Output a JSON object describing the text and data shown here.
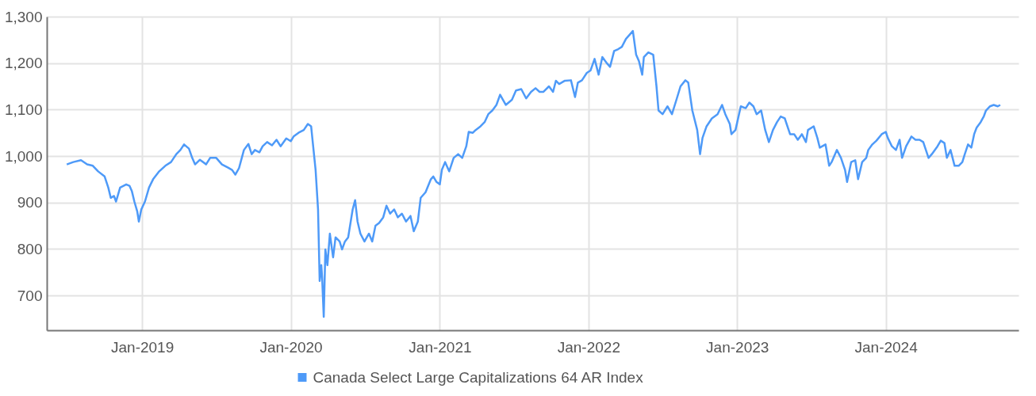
{
  "chart_data": {
    "type": "line",
    "x": [
      "2018-06-30",
      "2018-07-16",
      "2018-08-04",
      "2018-08-19",
      "2018-09-02",
      "2018-09-15",
      "2018-10-01",
      "2018-10-10",
      "2018-10-16",
      "2018-10-24",
      "2018-10-29",
      "2018-11-08",
      "2018-11-23",
      "2018-12-01",
      "2018-12-07",
      "2018-12-13",
      "2018-12-20",
      "2018-12-24",
      "2018-12-30",
      "2019-01-08",
      "2019-01-18",
      "2019-01-28",
      "2019-02-12",
      "2019-02-27",
      "2019-03-13",
      "2019-03-26",
      "2019-04-05",
      "2019-04-14",
      "2019-04-26",
      "2019-05-04",
      "2019-05-11",
      "2019-05-23",
      "2019-06-07",
      "2019-06-17",
      "2019-07-02",
      "2019-07-16",
      "2019-07-31",
      "2019-08-10",
      "2019-08-18",
      "2019-08-27",
      "2019-09-08",
      "2019-09-19",
      "2019-09-27",
      "2019-10-05",
      "2019-10-16",
      "2019-10-24",
      "2019-11-04",
      "2019-11-16",
      "2019-11-27",
      "2019-12-07",
      "2019-12-21",
      "2020-01-01",
      "2020-01-08",
      "2020-01-20",
      "2020-02-02",
      "2020-02-12",
      "2020-02-20",
      "2020-02-25",
      "2020-03-02",
      "2020-03-08",
      "2020-03-12",
      "2020-03-16",
      "2020-03-18",
      "2020-03-22",
      "2020-03-26",
      "2020-03-31",
      "2020-04-06",
      "2020-04-14",
      "2020-04-20",
      "2020-04-30",
      "2020-05-06",
      "2020-05-13",
      "2020-05-21",
      "2020-06-01",
      "2020-06-07",
      "2020-06-13",
      "2020-06-20",
      "2020-06-30",
      "2020-07-11",
      "2020-07-19",
      "2020-07-27",
      "2020-08-05",
      "2020-08-15",
      "2020-08-23",
      "2020-09-01",
      "2020-09-11",
      "2020-09-20",
      "2020-09-30",
      "2020-10-10",
      "2020-10-21",
      "2020-10-29",
      "2020-11-08",
      "2020-11-15",
      "2020-11-27",
      "2020-12-10",
      "2020-12-16",
      "2020-12-24",
      "2021-01-01",
      "2021-01-06",
      "2021-01-14",
      "2021-01-24",
      "2021-02-04",
      "2021-02-15",
      "2021-02-25",
      "2021-03-07",
      "2021-03-13",
      "2021-03-23",
      "2021-03-30",
      "2021-04-11",
      "2021-04-21",
      "2021-04-30",
      "2021-05-10",
      "2021-05-20",
      "2021-05-29",
      "2021-06-12",
      "2021-06-27",
      "2021-07-07",
      "2021-07-20",
      "2021-08-01",
      "2021-08-13",
      "2021-08-24",
      "2021-09-03",
      "2021-09-12",
      "2021-09-26",
      "2021-10-06",
      "2021-10-13",
      "2021-10-21",
      "2021-11-04",
      "2021-11-19",
      "2021-11-29",
      "2021-12-06",
      "2021-12-16",
      "2021-12-28",
      "2022-01-06",
      "2022-01-16",
      "2022-01-26",
      "2022-02-04",
      "2022-02-14",
      "2022-02-23",
      "2022-03-05",
      "2022-03-15",
      "2022-03-24",
      "2022-04-03",
      "2022-04-12",
      "2022-04-20",
      "2022-04-28",
      "2022-05-05",
      "2022-05-13",
      "2022-05-17",
      "2022-05-28",
      "2022-06-09",
      "2022-06-17",
      "2022-06-22",
      "2022-07-02",
      "2022-07-14",
      "2022-07-25",
      "2022-08-06",
      "2022-08-15",
      "2022-08-27",
      "2022-09-03",
      "2022-09-13",
      "2022-09-25",
      "2022-10-02",
      "2022-10-08",
      "2022-10-18",
      "2022-10-31",
      "2022-11-14",
      "2022-11-25",
      "2022-12-03",
      "2022-12-14",
      "2022-12-18",
      "2022-12-28",
      "2023-01-10",
      "2023-01-22",
      "2023-01-31",
      "2023-02-10",
      "2023-02-18",
      "2023-03-01",
      "2023-03-11",
      "2023-03-20",
      "2023-03-30",
      "2023-04-09",
      "2023-04-18",
      "2023-04-28",
      "2023-05-11",
      "2023-05-21",
      "2023-05-30",
      "2023-06-09",
      "2023-06-19",
      "2023-06-24",
      "2023-07-08",
      "2023-07-17",
      "2023-07-23",
      "2023-08-06",
      "2023-08-15",
      "2023-08-21",
      "2023-09-03",
      "2023-09-13",
      "2023-09-23",
      "2023-09-28",
      "2023-10-08",
      "2023-10-18",
      "2023-10-25",
      "2023-11-04",
      "2023-11-14",
      "2023-11-19",
      "2023-11-29",
      "2023-12-09",
      "2023-12-22",
      "2024-01-01",
      "2024-01-06",
      "2024-01-16",
      "2024-01-26",
      "2024-02-04",
      "2024-02-10",
      "2024-02-20",
      "2024-03-04",
      "2024-03-14",
      "2024-03-24",
      "2024-04-02",
      "2024-04-15",
      "2024-04-23",
      "2024-05-07",
      "2024-05-15",
      "2024-05-24",
      "2024-05-30",
      "2024-06-08",
      "2024-06-18",
      "2024-06-28",
      "2024-07-07",
      "2024-07-13",
      "2024-07-21",
      "2024-07-29",
      "2024-08-05",
      "2024-08-11",
      "2024-08-21",
      "2024-08-29",
      "2024-09-03",
      "2024-09-13",
      "2024-09-22",
      "2024-10-02",
      "2024-10-08"
    ],
    "series": [
      {
        "name": "Canada Select Large Capitalizations 64 AR Index",
        "color": "#4e9af8",
        "values": [
          982,
          987,
          991,
          982,
          979,
          967,
          956,
          932,
          910,
          914,
          902,
          932,
          939,
          936,
          924,
          902,
          881,
          859,
          885,
          902,
          932,
          950,
          967,
          979,
          987,
          1004,
          1013,
          1025,
          1016,
          996,
          982,
          992,
          982,
          996,
          996,
          982,
          975,
          970,
          960,
          974,
          1013,
          1026,
          1004,
          1013,
          1008,
          1021,
          1030,
          1023,
          1035,
          1021,
          1038,
          1032,
          1042,
          1050,
          1056,
          1069,
          1064,
          1021,
          970,
          885,
          731,
          765,
          739,
          654,
          799,
          765,
          833,
          782,
          825,
          816,
          799,
          816,
          825,
          885,
          905,
          859,
          833,
          816,
          833,
          816,
          850,
          856,
          868,
          893,
          876,
          885,
          868,
          876,
          859,
          871,
          838,
          859,
          910,
          922,
          950,
          956,
          944,
          939,
          970,
          987,
          967,
          996,
          1004,
          996,
          1021,
          1052,
          1050,
          1056,
          1064,
          1073,
          1090,
          1098,
          1110,
          1132,
          1110,
          1121,
          1141,
          1144,
          1124,
          1138,
          1146,
          1138,
          1138,
          1150,
          1138,
          1162,
          1155,
          1162,
          1163,
          1127,
          1158,
          1163,
          1179,
          1184,
          1209,
          1175,
          1213,
          1201,
          1192,
          1226,
          1230,
          1235,
          1252,
          1261,
          1269,
          1218,
          1204,
          1175,
          1213,
          1223,
          1218,
          1150,
          1098,
          1090,
          1107,
          1090,
          1124,
          1150,
          1163,
          1158,
          1098,
          1056,
          1004,
          1039,
          1064,
          1081,
          1090,
          1110,
          1090,
          1069,
          1047,
          1056,
          1107,
          1103,
          1115,
          1107,
          1090,
          1098,
          1056,
          1030,
          1056,
          1073,
          1085,
          1081,
          1047,
          1047,
          1035,
          1047,
          1030,
          1056,
          1064,
          1039,
          1018,
          1025,
          979,
          987,
          1013,
          996,
          970,
          944,
          987,
          991,
          950,
          987,
          996,
          1013,
          1025,
          1033,
          1047,
          1052,
          1039,
          1021,
          1013,
          1035,
          996,
          1021,
          1042,
          1035,
          1035,
          1030,
          996,
          1004,
          1021,
          1033,
          1028,
          996,
          1013,
          979,
          979,
          987,
          1004,
          1025,
          1018,
          1047,
          1061,
          1073,
          1086,
          1098,
          1107,
          1110,
          1107,
          1110
        ]
      }
    ],
    "xlim": [
      "2018-05-12",
      "2024-11-22"
    ],
    "xticks": [
      {
        "value": "2019-01-01",
        "label": "Jan-2019"
      },
      {
        "value": "2020-01-01",
        "label": "Jan-2020"
      },
      {
        "value": "2021-01-01",
        "label": "Jan-2021"
      },
      {
        "value": "2022-01-01",
        "label": "Jan-2022"
      },
      {
        "value": "2023-01-01",
        "label": "Jan-2023"
      },
      {
        "value": "2024-01-01",
        "label": "Jan-2024"
      }
    ],
    "ylim": [
      625,
      1300
    ],
    "yticks": [
      700,
      800,
      900,
      {
        "value": 1000,
        "label": "1,000"
      },
      {
        "value": 1100,
        "label": "1,100"
      },
      {
        "value": 1200,
        "label": "1,200"
      },
      {
        "value": 1300,
        "label": "1,300"
      }
    ],
    "grid": true,
    "legend": "bottom",
    "marker": "none",
    "line_style": "solid"
  }
}
